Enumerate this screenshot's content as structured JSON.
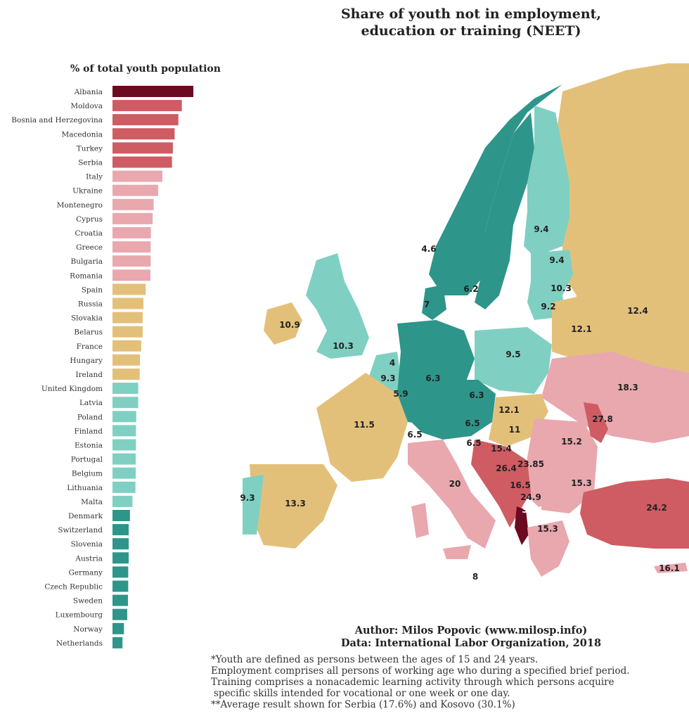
{
  "title_lines": [
    "Share of youth not in employment,",
    "education or training (NEET)"
  ],
  "chart_data": [
    {
      "type": "bar",
      "orientation": "horizontal",
      "title": "% of total youth population",
      "categories": [
        "Albania",
        "Moldova",
        "Bosnia and Herzegovina",
        "Macedonia",
        "Turkey",
        "Serbia",
        "Italy",
        "Ukraine",
        "Montenegro",
        "Cyprus",
        "Croatia",
        "Greece",
        "Bulgaria",
        "Romania",
        "Spain",
        "Russia",
        "Slovakia",
        "Belarus",
        "France",
        "Hungary",
        "Ireland",
        "United Kingdom",
        "Latvia",
        "Poland",
        "Finland",
        "Estonia",
        "Portugal",
        "Belgium",
        "Lithuania",
        "Malta",
        "Denmark",
        "Switzerland",
        "Slovenia",
        "Austria",
        "Germany",
        "Czech Republic",
        "Sweden",
        "Luxembourg",
        "Norway",
        "Netherlands"
      ],
      "values": [
        32.4,
        27.8,
        26.4,
        24.9,
        24.2,
        23.85,
        20,
        18.3,
        16.5,
        16.1,
        15.4,
        15.3,
        15.3,
        15.2,
        13.3,
        12.4,
        12.1,
        12.1,
        11.5,
        11,
        10.9,
        10.3,
        10.3,
        9.5,
        9.4,
        9.4,
        9.3,
        9.3,
        9.2,
        8,
        7,
        6.5,
        6.5,
        6.5,
        6.3,
        6.3,
        6.2,
        5.9,
        4.6,
        4
      ],
      "colors": [
        "#6b0a20",
        "#cf5c63",
        "#cf5c63",
        "#cf5c63",
        "#cf5c63",
        "#cf5c63",
        "#e8a8ae",
        "#e8a8ae",
        "#e8a8ae",
        "#e8a8ae",
        "#e8a8ae",
        "#e8a8ae",
        "#e8a8ae",
        "#e8a8ae",
        "#e3c07a",
        "#e3c07a",
        "#e3c07a",
        "#e3c07a",
        "#e3c07a",
        "#e3c07a",
        "#e3c07a",
        "#7fd0c2",
        "#7fd0c2",
        "#7fd0c2",
        "#7fd0c2",
        "#7fd0c2",
        "#7fd0c2",
        "#7fd0c2",
        "#7fd0c2",
        "#7fd0c2",
        "#2e958b",
        "#2e958b",
        "#2e958b",
        "#2e958b",
        "#2e958b",
        "#2e958b",
        "#2e958b",
        "#2e958b",
        "#2e958b",
        "#2e958b"
      ]
    },
    {
      "type": "choropleth-map",
      "labels": [
        {
          "country": "Norway",
          "value": "4.6"
        },
        {
          "country": "Sweden",
          "value": "6.2"
        },
        {
          "country": "Finland",
          "value": "9.4"
        },
        {
          "country": "Estonia",
          "value": "9.4"
        },
        {
          "country": "Latvia",
          "value": "10.3"
        },
        {
          "country": "Lithuania",
          "value": "9.2"
        },
        {
          "country": "Denmark",
          "value": "7"
        },
        {
          "country": "Ireland",
          "value": "10.9"
        },
        {
          "country": "United Kingdom",
          "value": "10.3"
        },
        {
          "country": "Netherlands",
          "value": "4"
        },
        {
          "country": "Belgium",
          "value": "9.3"
        },
        {
          "country": "Luxembourg",
          "value": "5.9"
        },
        {
          "country": "Germany",
          "value": "6.3"
        },
        {
          "country": "Poland",
          "value": "9.5"
        },
        {
          "country": "Belarus",
          "value": "12.1"
        },
        {
          "country": "Russia",
          "value": "12.4"
        },
        {
          "country": "Czech Republic",
          "value": "6.3"
        },
        {
          "country": "Austria",
          "value": "6.5"
        },
        {
          "country": "Slovakia",
          "value": "12.1"
        },
        {
          "country": "Ukraine",
          "value": "18.3"
        },
        {
          "country": "France",
          "value": "11.5"
        },
        {
          "country": "Switzerland",
          "value": "6.5"
        },
        {
          "country": "Slovenia",
          "value": "6.5"
        },
        {
          "country": "Hungary",
          "value": "11"
        },
        {
          "country": "Moldova",
          "value": "27.8"
        },
        {
          "country": "Croatia",
          "value": "15.4"
        },
        {
          "country": "Romania",
          "value": "15.2"
        },
        {
          "country": "Bosnia and Herzegovina",
          "value": "26.4"
        },
        {
          "country": "Serbia",
          "value": "23.85"
        },
        {
          "country": "Italy",
          "value": "20"
        },
        {
          "country": "Montenegro",
          "value": "16.5"
        },
        {
          "country": "Bulgaria",
          "value": "15.3"
        },
        {
          "country": "Macedonia",
          "value": "24.9"
        },
        {
          "country": "Albania",
          "value": "32.4"
        },
        {
          "country": "Portugal",
          "value": "9.3"
        },
        {
          "country": "Spain",
          "value": "13.3"
        },
        {
          "country": "Greece",
          "value": "15.3"
        },
        {
          "country": "Turkey",
          "value": "24.2"
        },
        {
          "country": "Cyprus",
          "value": "16.1"
        },
        {
          "country": "Malta",
          "value": "8"
        }
      ]
    }
  ],
  "author": "Author: Milos Popovic (www.milosp.info)",
  "data_source": "Data: International Labor Organization, 2018",
  "notes": [
    "*Youth are defined as persons between the ages of 15 and 24 years.",
    "Employment comprises all persons of working age who during a specified brief period.",
    "Training comprises a nonacademic learning activity through which persons acquire",
    "specific skills intended for vocational or one week or one day.",
    "**Average result shown for Serbia (17.6%) and Kosovo (30.1%)"
  ],
  "palette": {
    "very_high": "#6b0a20",
    "high": "#cf5c63",
    "mid_high": "#e8a8ae",
    "mid": "#e3c07a",
    "low": "#7fd0c2",
    "very_low": "#2e958b",
    "non_data": "#e3c07a"
  }
}
